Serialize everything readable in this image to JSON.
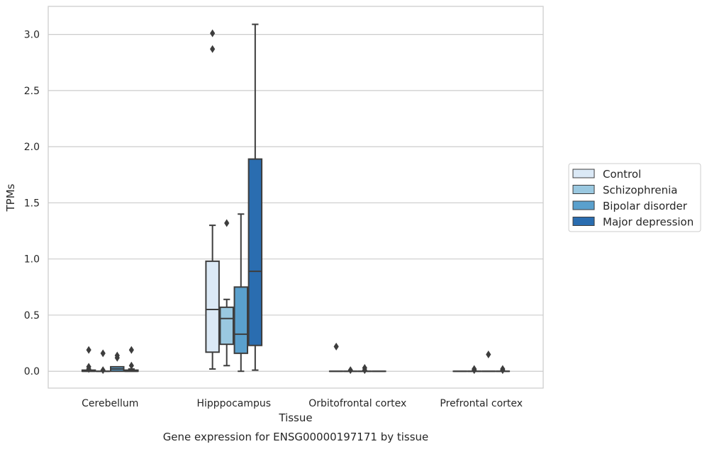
{
  "chart_data": {
    "type": "box",
    "xlabel": "Tissue",
    "ylabel": "TPMs",
    "caption": "Gene expression for ENSG00000197171 by tissue",
    "ylim": [
      -0.15,
      3.25
    ],
    "yticks": [
      "0.0",
      "0.5",
      "1.0",
      "1.5",
      "2.0",
      "2.5",
      "3.0"
    ],
    "grid": true,
    "legend_position": "right",
    "categories": [
      "Cerebellum",
      "Hipppocampus",
      "Orbitofrontal cortex",
      "Prefrontal cortex"
    ],
    "series": [
      {
        "name": "Control",
        "color": "#dbe9f6",
        "boxes": [
          {
            "whislo": 0.0,
            "q1": 0.0,
            "med": 0.0,
            "q3": 0.01,
            "whishi": 0.01,
            "fliers": [
              0.19,
              0.04,
              0.02
            ]
          },
          {
            "whislo": 0.02,
            "q1": 0.17,
            "med": 0.55,
            "q3": 0.98,
            "whishi": 1.3,
            "fliers": [
              3.01,
              2.87
            ]
          },
          {
            "whislo": 0.0,
            "q1": 0.0,
            "med": 0.0,
            "q3": 0.0,
            "whishi": 0.0,
            "fliers": [
              0.22
            ]
          },
          {
            "whislo": 0.0,
            "q1": 0.0,
            "med": 0.0,
            "q3": 0.0,
            "whishi": 0.0,
            "fliers": []
          }
        ]
      },
      {
        "name": "Schizophrenia",
        "color": "#9ac8e0",
        "boxes": [
          {
            "whislo": 0.0,
            "q1": 0.0,
            "med": 0.0,
            "q3": 0.0,
            "whishi": 0.0,
            "fliers": [
              0.16,
              0.01
            ]
          },
          {
            "whislo": 0.05,
            "q1": 0.24,
            "med": 0.47,
            "q3": 0.57,
            "whishi": 0.64,
            "fliers": [
              1.32
            ]
          },
          {
            "whislo": 0.0,
            "q1": 0.0,
            "med": 0.0,
            "q3": 0.0,
            "whishi": 0.0,
            "fliers": [
              0.01
            ]
          },
          {
            "whislo": 0.0,
            "q1": 0.0,
            "med": 0.0,
            "q3": 0.0,
            "whishi": 0.0,
            "fliers": [
              0.02,
              0.01
            ]
          }
        ]
      },
      {
        "name": "Bipolar disorder",
        "color": "#5aa0cd",
        "boxes": [
          {
            "whislo": 0.0,
            "q1": 0.0,
            "med": 0.02,
            "q3": 0.04,
            "whishi": 0.04,
            "fliers": [
              0.14,
              0.12
            ]
          },
          {
            "whislo": 0.0,
            "q1": 0.16,
            "med": 0.33,
            "q3": 0.75,
            "whishi": 1.4,
            "fliers": []
          },
          {
            "whislo": 0.0,
            "q1": 0.0,
            "med": 0.0,
            "q3": 0.0,
            "whishi": 0.0,
            "fliers": [
              0.03,
              0.01
            ]
          },
          {
            "whislo": 0.0,
            "q1": 0.0,
            "med": 0.0,
            "q3": 0.0,
            "whishi": 0.0,
            "fliers": [
              0.15
            ]
          }
        ]
      },
      {
        "name": "Major depression",
        "color": "#2a6db0",
        "boxes": [
          {
            "whislo": 0.0,
            "q1": 0.0,
            "med": 0.0,
            "q3": 0.01,
            "whishi": 0.02,
            "fliers": [
              0.19,
              0.05
            ]
          },
          {
            "whislo": 0.01,
            "q1": 0.23,
            "med": 0.89,
            "q3": 1.89,
            "whishi": 3.09,
            "fliers": []
          },
          {
            "whislo": 0.0,
            "q1": 0.0,
            "med": 0.0,
            "q3": 0.0,
            "whishi": 0.0,
            "fliers": []
          },
          {
            "whislo": 0.0,
            "q1": 0.0,
            "med": 0.0,
            "q3": 0.0,
            "whishi": 0.0,
            "fliers": [
              0.02,
              0.01
            ]
          }
        ]
      }
    ]
  }
}
